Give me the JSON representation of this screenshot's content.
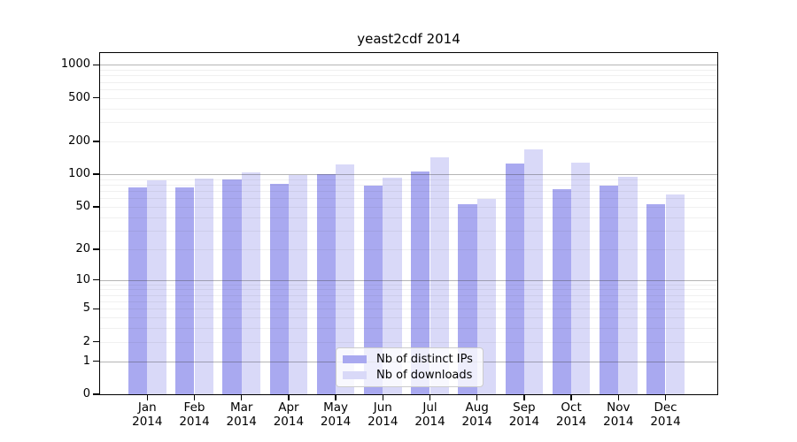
{
  "chart_data": {
    "type": "bar",
    "title": "yeast2cdf 2014",
    "categories": [
      "Jan",
      "Feb",
      "Mar",
      "Apr",
      "May",
      "Jun",
      "Jul",
      "Aug",
      "Sep",
      "Oct",
      "Nov",
      "Dec"
    ],
    "year_label": "2014",
    "series": [
      {
        "name": "Nb of distinct IPs",
        "color": "#a9a9f0",
        "values": [
          76,
          76,
          89,
          82,
          101,
          79,
          105,
          53,
          125,
          73,
          79,
          53
        ]
      },
      {
        "name": "Nb of downloads",
        "color": "#d9d9f8",
        "values": [
          88,
          91,
          104,
          98,
          124,
          93,
          142,
          59,
          168,
          128,
          95,
          65
        ]
      }
    ],
    "yscale": "log10(value+1)",
    "yticks": [
      0,
      1,
      2,
      5,
      10,
      20,
      50,
      100,
      200,
      500,
      1000
    ],
    "minor_yticks": [
      3,
      4,
      6,
      7,
      8,
      9,
      30,
      40,
      60,
      70,
      80,
      90,
      300,
      400,
      600,
      700,
      800,
      900
    ],
    "decade_ticks": [
      1,
      10,
      100,
      1000
    ],
    "ylim": [
      0,
      1100
    ],
    "grid": true,
    "legend_position": "bottom-center",
    "colors": {
      "axis": "#000000",
      "major_grid": "#ababab",
      "minor_grid": "#ededed",
      "legend_border": "#cccccc"
    }
  }
}
